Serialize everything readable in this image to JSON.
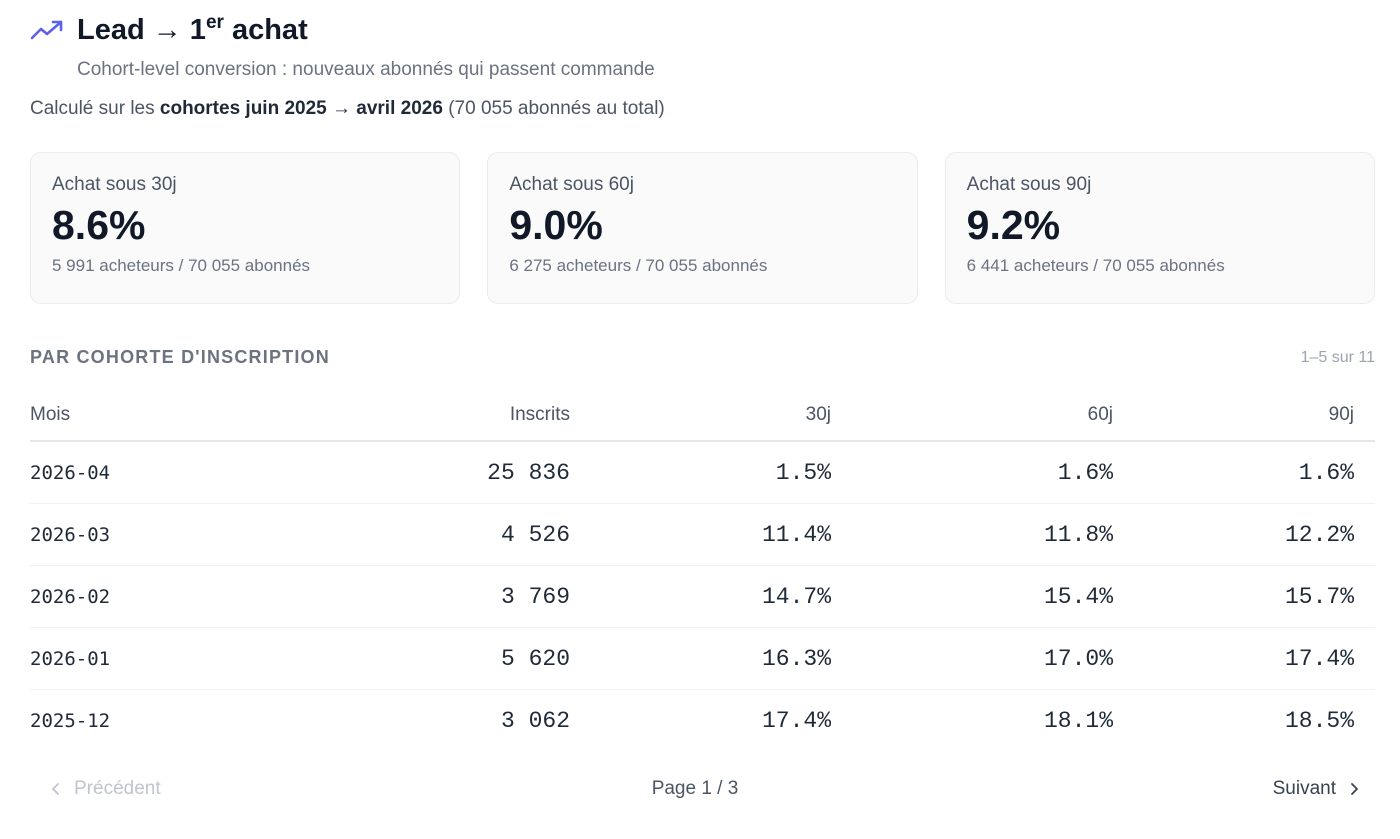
{
  "header": {
    "icon": "trending-up-icon",
    "accent_color": "#5b61e8",
    "title_main": "Lead → 1",
    "title_sup": "er",
    "title_end": " achat",
    "subtitle": "Cohort-level conversion : nouveaux abonnés qui passent commande"
  },
  "scope": {
    "prefix": "Calculé sur les ",
    "range": "cohortes juin 2025 → avril 2026",
    "suffix": " (70 055 abonnés au total)"
  },
  "cards": [
    {
      "label": "Achat sous 30j",
      "value": "8.6%",
      "sub": "5 991 acheteurs / 70 055 abonnés"
    },
    {
      "label": "Achat sous 60j",
      "value": "9.0%",
      "sub": "6 275 acheteurs / 70 055 abonnés"
    },
    {
      "label": "Achat sous 90j",
      "value": "9.2%",
      "sub": "6 441 acheteurs / 70 055 abonnés"
    }
  ],
  "section": {
    "title": "PAR COHORTE D'INSCRIPTION",
    "range": "1–5 sur 11"
  },
  "table": {
    "columns": [
      "Mois",
      "Inscrits",
      "30j",
      "60j",
      "90j"
    ],
    "rows": [
      [
        "2026-04",
        "25 836",
        "1.5%",
        "1.6%",
        "1.6%"
      ],
      [
        "2026-03",
        "4 526",
        "11.4%",
        "11.8%",
        "12.2%"
      ],
      [
        "2026-02",
        "3 769",
        "14.7%",
        "15.4%",
        "15.7%"
      ],
      [
        "2026-01",
        "5 620",
        "16.3%",
        "17.0%",
        "17.4%"
      ],
      [
        "2025-12",
        "3 062",
        "17.4%",
        "18.1%",
        "18.5%"
      ]
    ]
  },
  "pager": {
    "prev_label": "Précédent",
    "page_info": "Page 1 / 3",
    "next_label": "Suivant"
  }
}
